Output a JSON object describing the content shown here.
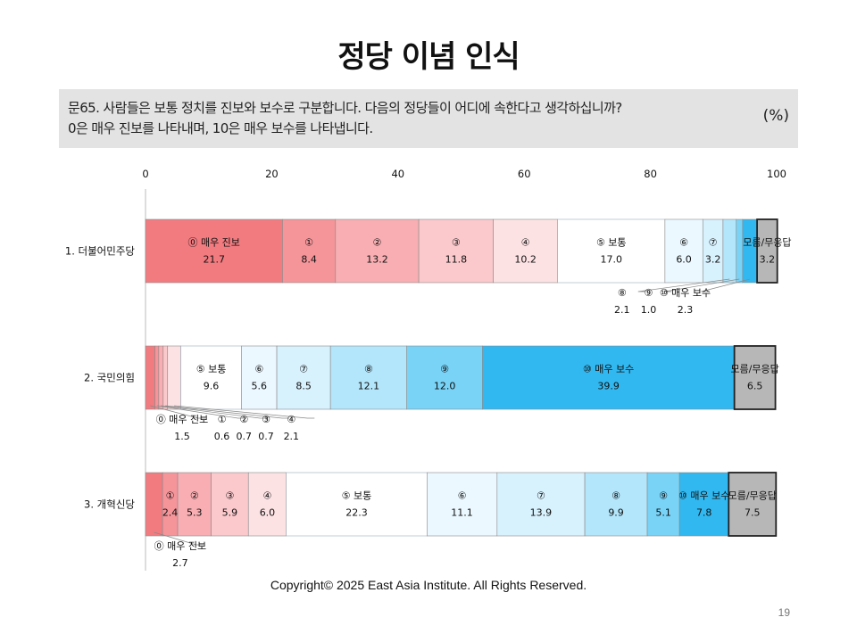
{
  "slide": {
    "title": "정당 이념 인식",
    "question_line1": "문65. 사람들은 보통 정치를 진보와 보수로 구분합니다. 다음의 정당들이 어디에 속한다고 생각하십니까?",
    "question_line2": "0은 매우 진보를 나타내며, 10은 매우 보수를 나타냅니다.",
    "unit": "(%)",
    "copyright": "Copyright© 2025 East Asia Institute. All Rights Reserved.",
    "page_number": "19"
  },
  "chart_data": {
    "type": "bar",
    "orientation": "horizontal",
    "stacked": true,
    "xlim": [
      0,
      100
    ],
    "x_ticks": [
      0,
      20,
      40,
      60,
      80,
      100
    ],
    "categories": [
      "1. 더불어민주당",
      "2. 국민의힘",
      "3. 개혁신당"
    ],
    "series": [
      {
        "name": "⓪ 매우 진보",
        "color": "#f27b80",
        "values": [
          21.7,
          1.5,
          2.7
        ]
      },
      {
        "name": "①",
        "color": "#f5959a",
        "values": [
          8.4,
          0.6,
          2.4
        ]
      },
      {
        "name": "②",
        "color": "#f8aeb2",
        "values": [
          13.2,
          0.7,
          5.3
        ]
      },
      {
        "name": "③",
        "color": "#fbc9cc",
        "values": [
          11.8,
          0.7,
          5.9
        ]
      },
      {
        "name": "④",
        "color": "#fde2e4",
        "values": [
          10.2,
          2.1,
          6.0
        ]
      },
      {
        "name": "⑤ 보통",
        "color": "#ffffff",
        "values": [
          17.0,
          9.6,
          22.3
        ]
      },
      {
        "name": "⑥",
        "color": "#ebf8ff",
        "values": [
          6.0,
          5.6,
          11.1
        ]
      },
      {
        "name": "⑦",
        "color": "#d7f1fd",
        "values": [
          3.2,
          8.5,
          13.9
        ]
      },
      {
        "name": "⑧",
        "color": "#b3e6fb",
        "values": [
          2.1,
          12.1,
          9.9
        ]
      },
      {
        "name": "⑨",
        "color": "#78d3f7",
        "values": [
          1.0,
          12.0,
          5.1
        ]
      },
      {
        "name": "⑩ 매우 보수",
        "color": "#32b8f0",
        "values": [
          2.3,
          39.9,
          7.8
        ]
      },
      {
        "name": "모름/무응답",
        "color": "#b7b7b7",
        "values": [
          3.2,
          6.5,
          7.5
        ]
      }
    ],
    "value_labels": [
      [
        "21.7",
        "8.4",
        "13.2",
        "11.8",
        "10.2",
        "17.0",
        "6.0",
        "3.2",
        "2.1",
        "1.0",
        "2.3",
        "3.2"
      ],
      [
        "1.5",
        "0.6",
        "0.7",
        "0.7",
        "2.1",
        "9.6",
        "5.6",
        "8.5",
        "12.1",
        "12.0",
        "39.9",
        "6.5"
      ],
      [
        "2.7",
        "2.4",
        "5.3",
        "5.9",
        "6.0",
        "22.3",
        "11.1",
        "13.9",
        "9.9",
        "5.1",
        "7.8",
        "7.5"
      ]
    ],
    "callouts": [
      [
        8,
        9,
        10
      ],
      [
        0,
        1,
        2,
        3,
        4
      ],
      [
        0
      ]
    ]
  }
}
